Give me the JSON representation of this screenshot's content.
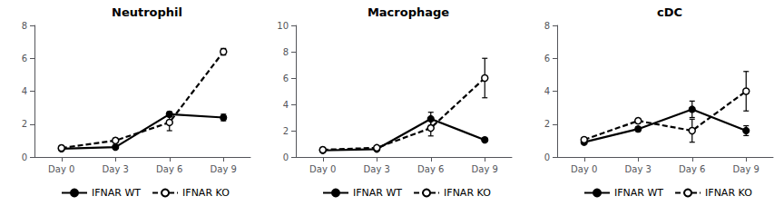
{
  "chart_data": [
    {
      "type": "line",
      "title": "Neutrophil",
      "categories": [
        "Day 0",
        "Day 3",
        "Day 6",
        "Day 9"
      ],
      "ylim": [
        0,
        8
      ],
      "yticks": [
        0,
        2,
        4,
        6,
        8
      ],
      "grid": false,
      "legend": "bottom",
      "series": [
        {
          "name": "IFNAR WT",
          "color": "black",
          "line_style": "solid",
          "marker": "filled_circle",
          "values": [
            0.5,
            0.6,
            2.6,
            2.4
          ],
          "error": [
            0.05,
            0.1,
            0.15,
            0.2
          ]
        },
        {
          "name": "IFNAR KO",
          "color": "black",
          "line_style": "dashed",
          "marker": "open_circle",
          "values": [
            0.55,
            1.0,
            2.1,
            6.4
          ],
          "error": [
            0.05,
            0.15,
            0.5,
            0.2
          ]
        }
      ]
    },
    {
      "type": "line",
      "title": "Macrophage",
      "categories": [
        "Day 0",
        "Day 3",
        "Day 6",
        "Day 9"
      ],
      "ylim": [
        0,
        10
      ],
      "yticks": [
        0,
        2,
        4,
        6,
        8,
        10
      ],
      "grid": false,
      "legend": "bottom",
      "series": [
        {
          "name": "IFNAR WT",
          "color": "black",
          "line_style": "solid",
          "marker": "filled_circle",
          "values": [
            0.5,
            0.6,
            2.9,
            1.3
          ],
          "error": [
            0.05,
            0.1,
            0.5,
            0.15
          ]
        },
        {
          "name": "IFNAR KO",
          "color": "black",
          "line_style": "dashed",
          "marker": "open_circle",
          "values": [
            0.55,
            0.7,
            2.2,
            6.0
          ],
          "error": [
            0.05,
            0.1,
            0.6,
            1.5
          ]
        }
      ]
    },
    {
      "type": "line",
      "title": "cDC",
      "categories": [
        "Day 0",
        "Day 3",
        "Day 6",
        "Day 9"
      ],
      "ylim": [
        0,
        8
      ],
      "yticks": [
        0,
        2,
        4,
        6,
        8
      ],
      "grid": false,
      "legend": "bottom",
      "series": [
        {
          "name": "IFNAR WT",
          "color": "black",
          "line_style": "solid",
          "marker": "filled_circle",
          "values": [
            0.9,
            1.7,
            2.9,
            1.6
          ],
          "error": [
            0.05,
            0.15,
            0.5,
            0.3
          ]
        },
        {
          "name": "IFNAR KO",
          "color": "black",
          "line_style": "dashed",
          "marker": "open_circle",
          "values": [
            1.05,
            2.2,
            1.6,
            4.0
          ],
          "error": [
            0.1,
            0.15,
            0.7,
            1.2
          ]
        }
      ]
    }
  ]
}
